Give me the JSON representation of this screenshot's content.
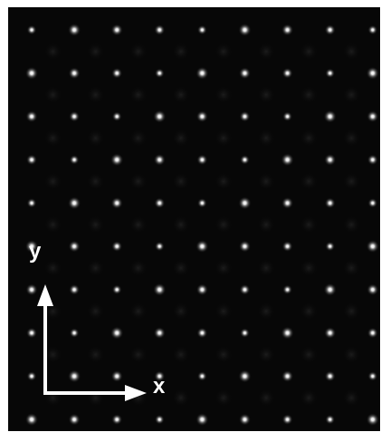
{
  "image": {
    "background_color": "#070707",
    "frame_color": "#ffffff",
    "spot_color": "#ffffff",
    "lattice": {
      "rows": 10,
      "columns": 9,
      "type": "square",
      "spot_shape": "gaussian"
    }
  },
  "axes": {
    "x_label": "x",
    "y_label": "y",
    "arrow_color": "#ffffff",
    "origin_corner": "bottom-left"
  }
}
